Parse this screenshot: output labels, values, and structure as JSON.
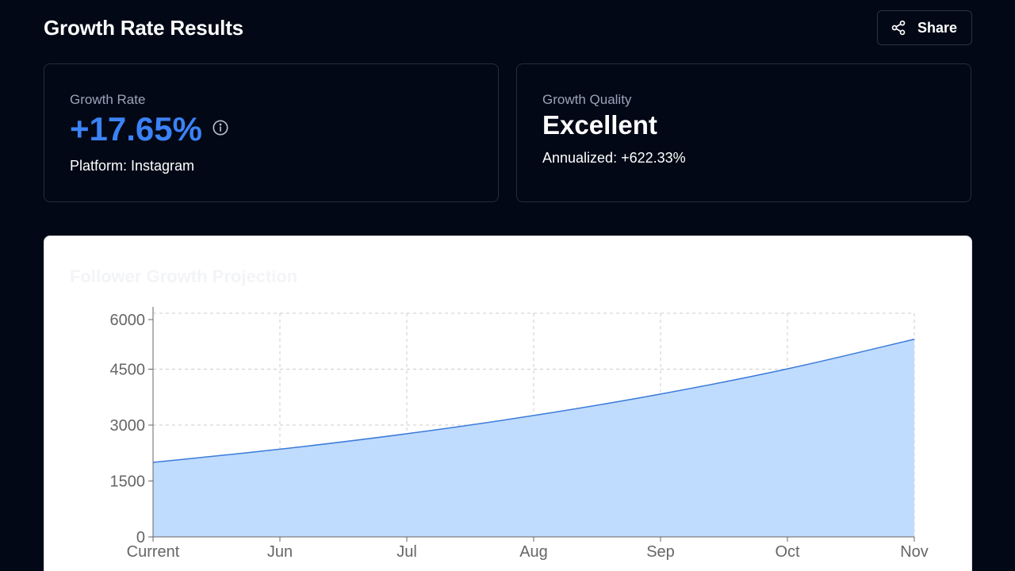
{
  "header": {
    "title": "Growth Rate Results",
    "share_label": "Share",
    "share_icon": "share-icon"
  },
  "growth_rate_card": {
    "label": "Growth Rate",
    "value": "+17.65%",
    "info_icon": "info-icon",
    "platform": "Platform: Instagram"
  },
  "growth_quality_card": {
    "label": "Growth Quality",
    "value": "Excellent",
    "annualized": "Annualized: +622.33%"
  },
  "chart": {
    "title": "Follower Growth Projection"
  },
  "colors": {
    "background": "#030816",
    "accent": "#3b82f6",
    "line": "#3b7bd9",
    "area": "#bfdbfe"
  },
  "chart_data": {
    "type": "area",
    "title": "Follower Growth Projection",
    "xlabel": "",
    "ylabel": "",
    "categories": [
      "Current",
      "Jun",
      "Jul",
      "Aug",
      "Sep",
      "Oct",
      "Nov"
    ],
    "values": [
      2000,
      2353,
      2768,
      3257,
      3832,
      4508,
      5304
    ],
    "ylim": [
      0,
      6000
    ],
    "yticks": [
      0,
      1500,
      3000,
      4500,
      6000
    ],
    "grid": true,
    "legend": "none"
  }
}
